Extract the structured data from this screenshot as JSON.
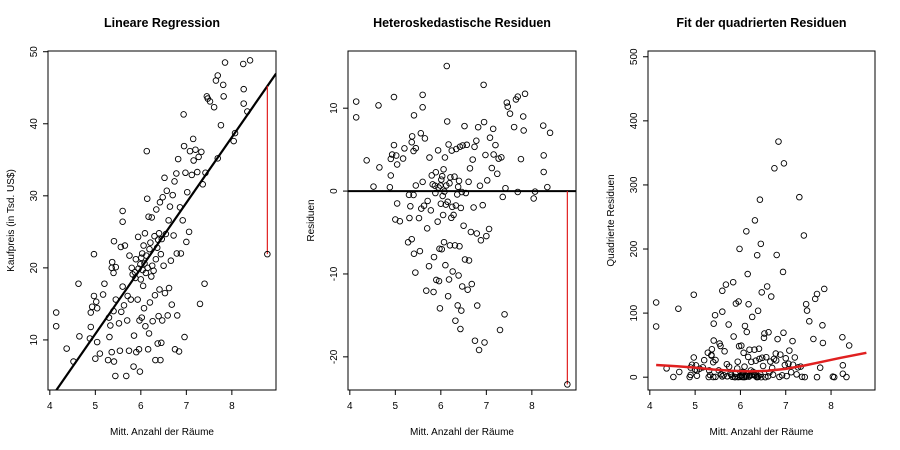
{
  "chart_data": [
    {
      "type": "scatter",
      "title": "Lineare Regression",
      "xlabel": "Mitt. Anzahl der Räume",
      "ylabel": "Kaufpreis (in Tsd. US$)",
      "xlim": [
        3.96,
        8.97
      ],
      "ylim": [
        3.05,
        50.1
      ],
      "xticks": [
        4,
        5,
        6,
        7,
        8
      ],
      "yticks": [
        10,
        20,
        30,
        40,
        50
      ],
      "regression": {
        "intercept": -34.67,
        "slope": 9.1,
        "color": "#000000"
      },
      "highlight": {
        "x": 8.78,
        "y": 21.9,
        "color": "#e02020"
      }
    },
    {
      "type": "scatter",
      "title": "Heteroskedastische Residuen",
      "xlabel": "Mitt. Anzahl der Räume",
      "ylabel": "Residuen",
      "xlim": [
        3.96,
        8.97
      ],
      "ylim": [
        -24,
        16.9
      ],
      "xticks": [
        4,
        5,
        6,
        7,
        8
      ],
      "yticks": [
        -20,
        -10,
        0,
        10
      ],
      "hline": 0
    },
    {
      "type": "scatter",
      "title": "Fit der quadrierten Residuen",
      "xlabel": "Mitt. Anzahl der Räume",
      "ylabel": "Quadrierte Residuen",
      "xlim": [
        3.96,
        8.97
      ],
      "ylim": [
        -20,
        509
      ],
      "xticks": [
        4,
        5,
        6,
        7,
        8
      ],
      "yticks": [
        0,
        100,
        200,
        300,
        400,
        500
      ],
      "fit": {
        "color": "#e02020",
        "x": [
          4.14,
          4.6,
          5.0,
          5.4,
          5.8,
          6.2,
          6.6,
          7.0,
          7.4,
          7.8,
          8.2,
          8.78
        ],
        "y": [
          19,
          17,
          15,
          12,
          10,
          9,
          10,
          13,
          18,
          24,
          30,
          38
        ]
      }
    }
  ],
  "points": [
    [
      4.14,
      13.8
    ],
    [
      4.14,
      11.9
    ],
    [
      4.37,
      8.8
    ],
    [
      4.52,
      7.0
    ],
    [
      4.63,
      17.8
    ],
    [
      4.65,
      10.5
    ],
    [
      4.88,
      10.2
    ],
    [
      4.9,
      13.8
    ],
    [
      4.9,
      11.8
    ],
    [
      4.93,
      14.6
    ],
    [
      4.97,
      21.9
    ],
    [
      4.97,
      16.1
    ],
    [
      5.0,
      7.4
    ],
    [
      5.02,
      15.3
    ],
    [
      5.04,
      9.7
    ],
    [
      5.04,
      14.4
    ],
    [
      5.1,
      8.1
    ],
    [
      5.17,
      16.3
    ],
    [
      5.2,
      17.8
    ],
    [
      5.28,
      7.2
    ],
    [
      5.3,
      13.1
    ],
    [
      5.31,
      10.4
    ],
    [
      5.33,
      12.0
    ],
    [
      5.36,
      8.3
    ],
    [
      5.37,
      20.8
    ],
    [
      5.36,
      20.0
    ],
    [
      5.4,
      19.3
    ],
    [
      5.4,
      14.0
    ],
    [
      5.41,
      23.7
    ],
    [
      5.41,
      7.0
    ],
    [
      5.44,
      5.0
    ],
    [
      5.45,
      20.1
    ],
    [
      5.45,
      15.6
    ],
    [
      5.52,
      12.3
    ],
    [
      5.54,
      8.5
    ],
    [
      5.56,
      22.9
    ],
    [
      5.57,
      13.9
    ],
    [
      5.6,
      27.9
    ],
    [
      5.6,
      26.4
    ],
    [
      5.6,
      17.4
    ],
    [
      5.63,
      14.8
    ],
    [
      5.65,
      23.1
    ],
    [
      5.68,
      5.0
    ],
    [
      5.7,
      12.7
    ],
    [
      5.71,
      16.1
    ],
    [
      5.74,
      8.5
    ],
    [
      5.75,
      21.7
    ],
    [
      5.78,
      15.6
    ],
    [
      5.8,
      20.0
    ],
    [
      5.82,
      19.1
    ],
    [
      5.84,
      6.3
    ],
    [
      5.85,
      10.6
    ],
    [
      5.87,
      19.4
    ],
    [
      5.88,
      18.6
    ],
    [
      5.89,
      21.2
    ],
    [
      5.9,
      8.3
    ],
    [
      5.93,
      15.6
    ],
    [
      5.94,
      24.3
    ],
    [
      5.95,
      19.9
    ],
    [
      5.96,
      8.7
    ],
    [
      5.97,
      12.7
    ],
    [
      5.98,
      5.6
    ],
    [
      5.99,
      20.5
    ],
    [
      6.0,
      18.4
    ],
    [
      6.01,
      21.4
    ],
    [
      6.02,
      13.1
    ],
    [
      6.03,
      22.0
    ],
    [
      6.04,
      19.7
    ],
    [
      6.05,
      17.5
    ],
    [
      6.06,
      23.1
    ],
    [
      6.07,
      14.4
    ],
    [
      6.08,
      20.6
    ],
    [
      6.09,
      24.8
    ],
    [
      6.1,
      11.9
    ],
    [
      6.11,
      19.3
    ],
    [
      6.12,
      21.7
    ],
    [
      6.13,
      36.2
    ],
    [
      6.14,
      29.6
    ],
    [
      6.15,
      20.0
    ],
    [
      6.16,
      8.7
    ],
    [
      6.17,
      27.1
    ],
    [
      6.18,
      10.9
    ],
    [
      6.19,
      22.6
    ],
    [
      6.2,
      15.2
    ],
    [
      6.21,
      23.5
    ],
    [
      6.23,
      18.8
    ],
    [
      6.24,
      27.0
    ],
    [
      6.25,
      20.3
    ],
    [
      6.26,
      12.6
    ],
    [
      6.28,
      19.6
    ],
    [
      6.3,
      24.4
    ],
    [
      6.31,
      16.2
    ],
    [
      6.32,
      7.2
    ],
    [
      6.33,
      21.2
    ],
    [
      6.34,
      28.1
    ],
    [
      6.36,
      22.8
    ],
    [
      6.37,
      9.5
    ],
    [
      6.38,
      23.9
    ],
    [
      6.39,
      13.3
    ],
    [
      6.4,
      24.8
    ],
    [
      6.41,
      17.0
    ],
    [
      6.42,
      29.1
    ],
    [
      6.43,
      7.2
    ],
    [
      6.44,
      21.9
    ],
    [
      6.45,
      9.6
    ],
    [
      6.46,
      24.0
    ],
    [
      6.47,
      12.7
    ],
    [
      6.48,
      29.8
    ],
    [
      6.5,
      20.3
    ],
    [
      6.52,
      32.5
    ],
    [
      6.53,
      16.5
    ],
    [
      6.55,
      24.7
    ],
    [
      6.57,
      30.7
    ],
    [
      6.59,
      13.4
    ],
    [
      6.61,
      26.6
    ],
    [
      6.62,
      17.2
    ],
    [
      6.64,
      28.5
    ],
    [
      6.66,
      21.0
    ],
    [
      6.68,
      14.9
    ],
    [
      6.7,
      30.1
    ],
    [
      6.72,
      24.5
    ],
    [
      6.74,
      32.0
    ],
    [
      6.75,
      8.7
    ],
    [
      6.78,
      33.1
    ],
    [
      6.79,
      22.0
    ],
    [
      6.8,
      13.4
    ],
    [
      6.82,
      35.1
    ],
    [
      6.84,
      8.4
    ],
    [
      6.86,
      28.4
    ],
    [
      6.88,
      22.0
    ],
    [
      6.92,
      26.6
    ],
    [
      6.94,
      41.3
    ],
    [
      6.95,
      36.9
    ],
    [
      6.96,
      10.4
    ],
    [
      6.98,
      33.2
    ],
    [
      7.0,
      23.6
    ],
    [
      7.02,
      30.5
    ],
    [
      7.06,
      25.0
    ],
    [
      7.08,
      36.2
    ],
    [
      7.12,
      32.9
    ],
    [
      7.15,
      37.9
    ],
    [
      7.16,
      34.9
    ],
    [
      7.2,
      36.4
    ],
    [
      7.24,
      33.3
    ],
    [
      7.27,
      35.4
    ],
    [
      7.3,
      15.0
    ],
    [
      7.33,
      36.1
    ],
    [
      7.36,
      31.6
    ],
    [
      7.4,
      17.8
    ],
    [
      7.42,
      33.2
    ],
    [
      7.45,
      43.8
    ],
    [
      7.47,
      43.5
    ],
    [
      7.52,
      43.1
    ],
    [
      7.61,
      42.3
    ],
    [
      7.65,
      46.0
    ],
    [
      7.69,
      46.7
    ],
    [
      7.76,
      39.8
    ],
    [
      7.81,
      45.4
    ],
    [
      7.82,
      43.8
    ],
    [
      7.85,
      48.5
    ],
    [
      7.69,
      35.2
    ],
    [
      8.04,
      37.6
    ],
    [
      8.07,
      38.7
    ],
    [
      8.25,
      48.3
    ],
    [
      8.26,
      44.8
    ],
    [
      8.26,
      42.8
    ],
    [
      8.34,
      41.7
    ],
    [
      8.4,
      48.8
    ],
    [
      8.78,
      21.9
    ]
  ]
}
